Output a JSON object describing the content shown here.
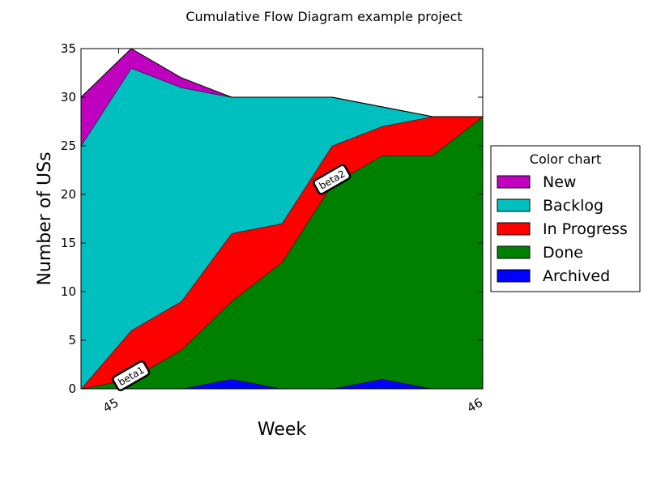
{
  "chart_data": {
    "type": "area",
    "stacked": true,
    "title": "Cumulative Flow Diagram example project",
    "xlabel": "Week",
    "ylabel": "Number of USs",
    "xlim": [
      0,
      8
    ],
    "ylim": [
      0,
      35
    ],
    "x": [
      0,
      1,
      2,
      3,
      4,
      5,
      6,
      7,
      8
    ],
    "x_ticks": [
      {
        "x": 0.75,
        "label": "45"
      },
      {
        "x": 8,
        "label": "46"
      }
    ],
    "y_ticks": [
      0,
      5,
      10,
      15,
      20,
      25,
      30,
      35
    ],
    "grid": false,
    "legend": {
      "title": "Color chart",
      "placement": "right outside"
    },
    "series": [
      {
        "name": "Archived",
        "color": "#0000ff",
        "values": [
          0,
          0,
          0,
          1,
          0,
          0,
          1,
          0,
          0
        ]
      },
      {
        "name": "Done",
        "color": "#008000",
        "values": [
          0,
          1,
          4,
          8,
          13,
          21,
          23,
          24,
          28
        ]
      },
      {
        "name": "In Progress",
        "color": "#ff0000",
        "values": [
          0,
          5,
          5,
          7,
          4,
          4,
          3,
          4,
          0
        ]
      },
      {
        "name": "Backlog",
        "color": "#00bfbf",
        "values": [
          25,
          27,
          22,
          14,
          13,
          5,
          2,
          0,
          0
        ]
      },
      {
        "name": "New",
        "color": "#bf00bf",
        "values": [
          5,
          2,
          1,
          0,
          0,
          0,
          0,
          0,
          0
        ]
      }
    ],
    "legend_order": [
      "New",
      "Backlog",
      "In Progress",
      "Done",
      "Archived"
    ],
    "annotations": [
      {
        "text": "beta1",
        "x": 1,
        "y": 0.3
      },
      {
        "text": "beta2",
        "x": 5,
        "y": 20.5
      }
    ]
  }
}
